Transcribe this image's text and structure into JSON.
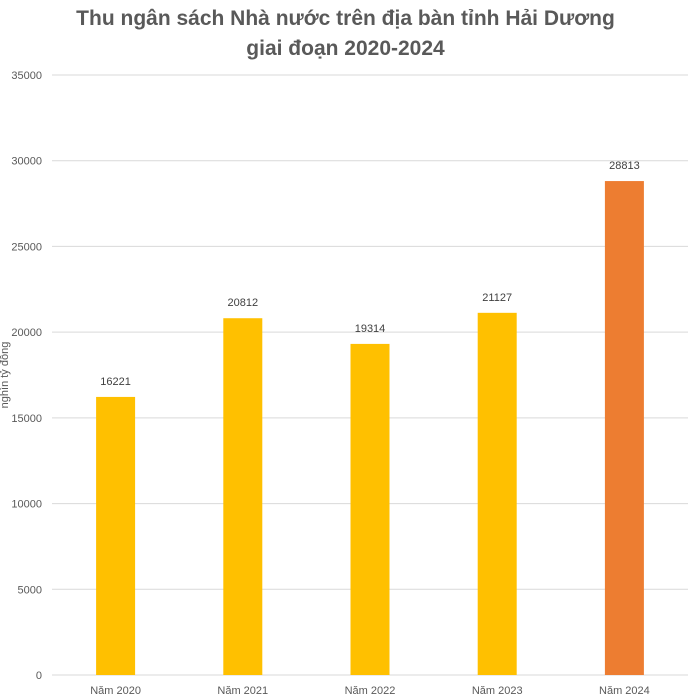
{
  "chart_data": {
    "type": "bar",
    "title_lines": [
      "Thu ngân sách Nhà nước trên địa bàn tỉnh Hải Dương",
      "giai đoạn 2020-2024"
    ],
    "xlabel": "",
    "ylabel": "nghìn tỷ đồng",
    "categories": [
      "Năm 2020",
      "Năm 2021",
      "Năm 2022",
      "Năm 2023",
      "Năm 2024"
    ],
    "values": [
      16221,
      20812,
      19314,
      21127,
      28813
    ],
    "data_labels": [
      "16221",
      "20812",
      "19314",
      "21127",
      "28813"
    ],
    "bar_colors": [
      "#FFC000",
      "#FFC000",
      "#FFC000",
      "#FFC000",
      "#ED7D31"
    ],
    "ylim": [
      0,
      35000
    ],
    "yticks": [
      0,
      5000,
      10000,
      15000,
      20000,
      25000,
      30000,
      35000
    ],
    "ytick_labels": [
      "0",
      "5000",
      "10000",
      "15000",
      "20000",
      "25000",
      "30000",
      "35000"
    ],
    "grid": true,
    "grid_color": "#D9D9D9",
    "legend": "none"
  }
}
